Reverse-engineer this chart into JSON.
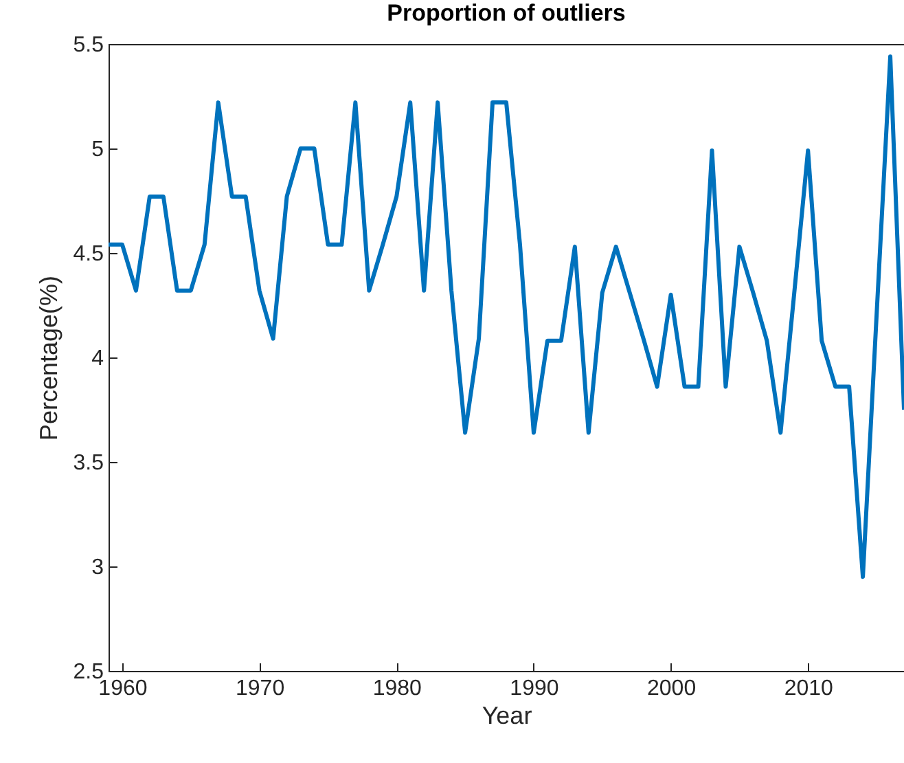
{
  "chart_data": {
    "type": "line",
    "title": "Proportion of outliers",
    "xlabel": "Year",
    "ylabel": "Percentage(%)",
    "x": [
      1959,
      1960,
      1961,
      1962,
      1963,
      1964,
      1965,
      1966,
      1967,
      1968,
      1969,
      1970,
      1971,
      1972,
      1973,
      1974,
      1975,
      1976,
      1977,
      1978,
      1979,
      1980,
      1981,
      1982,
      1983,
      1984,
      1985,
      1986,
      1987,
      1988,
      1989,
      1990,
      1991,
      1992,
      1993,
      1994,
      1995,
      1996,
      1997,
      1998,
      1999,
      2000,
      2001,
      2002,
      2003,
      2004,
      2005,
      2006,
      2007,
      2008,
      2009,
      2010,
      2011,
      2012,
      2013,
      2014,
      2015,
      2016,
      2017
    ],
    "series": [
      {
        "color": "#0072bd",
        "values": [
          4.54,
          4.54,
          4.32,
          4.77,
          4.77,
          4.32,
          4.32,
          4.54,
          5.22,
          4.77,
          4.77,
          4.32,
          4.09,
          4.77,
          5.0,
          5.0,
          4.54,
          4.54,
          5.22,
          4.32,
          4.54,
          4.77,
          5.22,
          4.32,
          5.22,
          4.32,
          3.64,
          4.09,
          5.22,
          5.22,
          4.54,
          3.64,
          4.08,
          4.08,
          4.53,
          3.64,
          4.31,
          4.53,
          4.31,
          4.09,
          3.86,
          4.3,
          3.86,
          3.86,
          4.99,
          3.86,
          4.53,
          4.31,
          4.08,
          3.64,
          4.31,
          4.99,
          4.08,
          3.86,
          3.86,
          2.95,
          4.2,
          5.44,
          3.75
        ]
      }
    ],
    "xlim": [
      1959,
      2017
    ],
    "ylim": [
      2.5,
      5.5
    ],
    "xticks": [
      1960,
      1970,
      1980,
      1990,
      2000,
      2010
    ],
    "yticks": [
      2.5,
      3,
      3.5,
      4,
      4.5,
      5,
      5.5
    ],
    "grid": false,
    "legend": false,
    "marker": "none",
    "line_style": "solid"
  }
}
